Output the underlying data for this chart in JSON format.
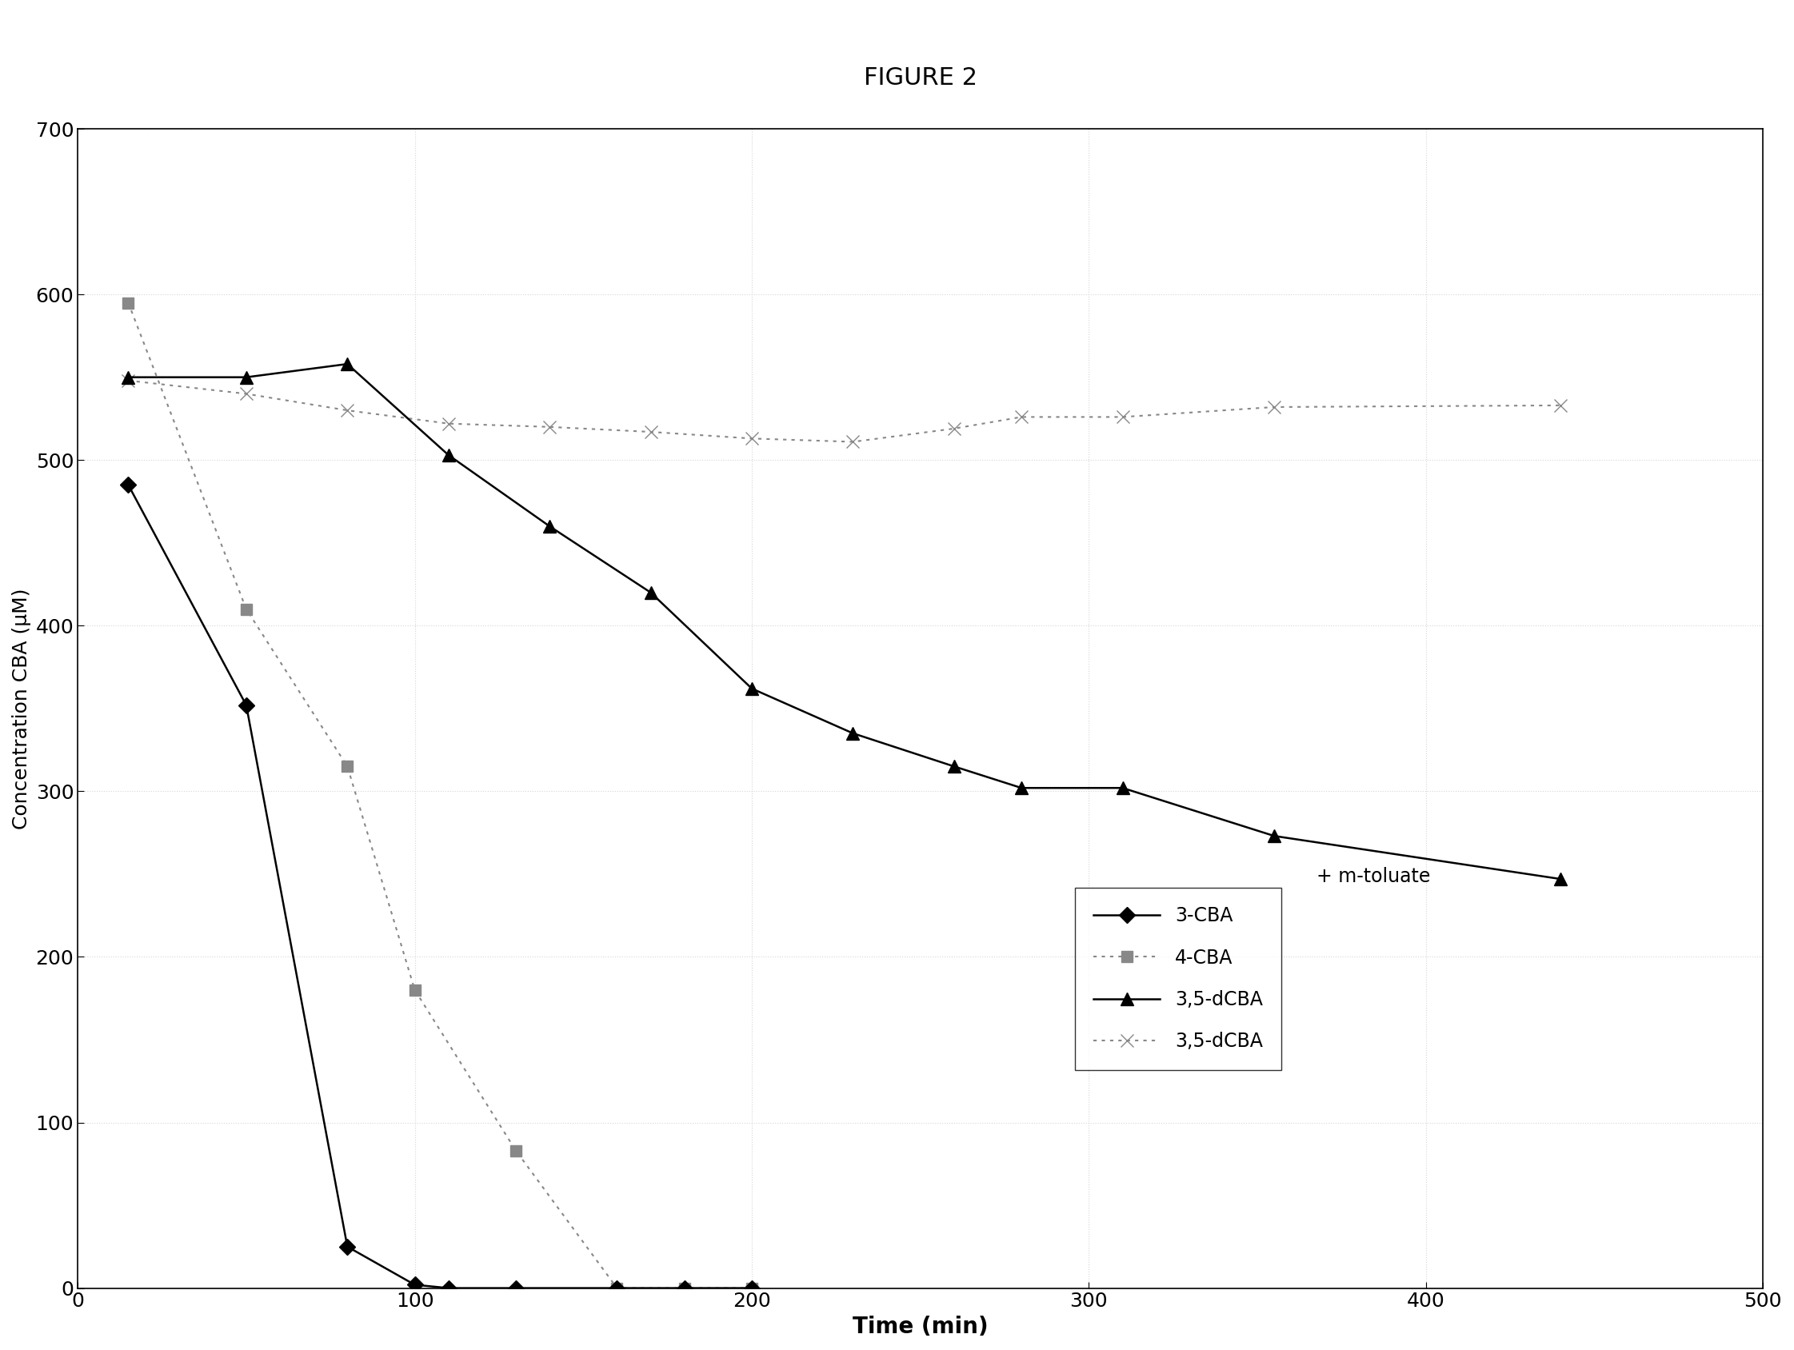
{
  "title": "FIGURE 2",
  "xlabel": "Time (min)",
  "ylabel": "Concentration CBA (μM)",
  "xlim": [
    0,
    500
  ],
  "ylim": [
    0,
    700
  ],
  "xticks": [
    0,
    100,
    200,
    300,
    400,
    500
  ],
  "yticks": [
    0,
    100,
    200,
    300,
    400,
    500,
    600,
    700
  ],
  "series": {
    "3-CBA": {
      "x": [
        15,
        50,
        80,
        100,
        110,
        130,
        160,
        180,
        200
      ],
      "y": [
        485,
        352,
        25,
        2,
        0,
        0,
        0,
        0,
        0
      ],
      "color": "#000000",
      "linestyle": "-",
      "marker": "D",
      "markersize": 10,
      "linewidth": 1.8,
      "label": "3-CBA"
    },
    "4-CBA": {
      "x": [
        15,
        50,
        80,
        100,
        130,
        160,
        180,
        200
      ],
      "y": [
        595,
        410,
        315,
        180,
        83,
        0,
        0,
        0
      ],
      "color": "#888888",
      "linestyle": "--",
      "marker": "s",
      "markersize": 10,
      "linewidth": 1.5,
      "label": "4-CBA"
    },
    "3,5-dCBA_mtoluate": {
      "x": [
        15,
        50,
        80,
        110,
        140,
        170,
        200,
        230,
        260,
        280,
        310,
        355,
        440
      ],
      "y": [
        550,
        550,
        558,
        503,
        460,
        420,
        362,
        335,
        315,
        302,
        302,
        273,
        247
      ],
      "color": "#000000",
      "linestyle": "-",
      "marker": "^",
      "markersize": 11,
      "linewidth": 1.8,
      "label": "3,5-dCBA"
    },
    "3,5-dCBA": {
      "x": [
        15,
        50,
        80,
        110,
        140,
        170,
        200,
        230,
        260,
        280,
        310,
        355,
        440
      ],
      "y": [
        548,
        540,
        530,
        522,
        520,
        517,
        513,
        511,
        519,
        526,
        526,
        532,
        533
      ],
      "color": "#888888",
      "linestyle": "--",
      "marker": "x",
      "markersize": 11,
      "linewidth": 1.5,
      "label": "3,5-dCBA"
    }
  },
  "legend_labels": [
    "3-CBA",
    "4-CBA",
    "3,5-dCBA",
    "3,5-dCBA"
  ],
  "mtoluate_annotation": "+ m-toluate",
  "title_fontsize": 22,
  "xlabel_fontsize": 20,
  "ylabel_fontsize": 18,
  "tick_fontsize": 18,
  "legend_fontsize": 17,
  "background_color": "#ffffff"
}
